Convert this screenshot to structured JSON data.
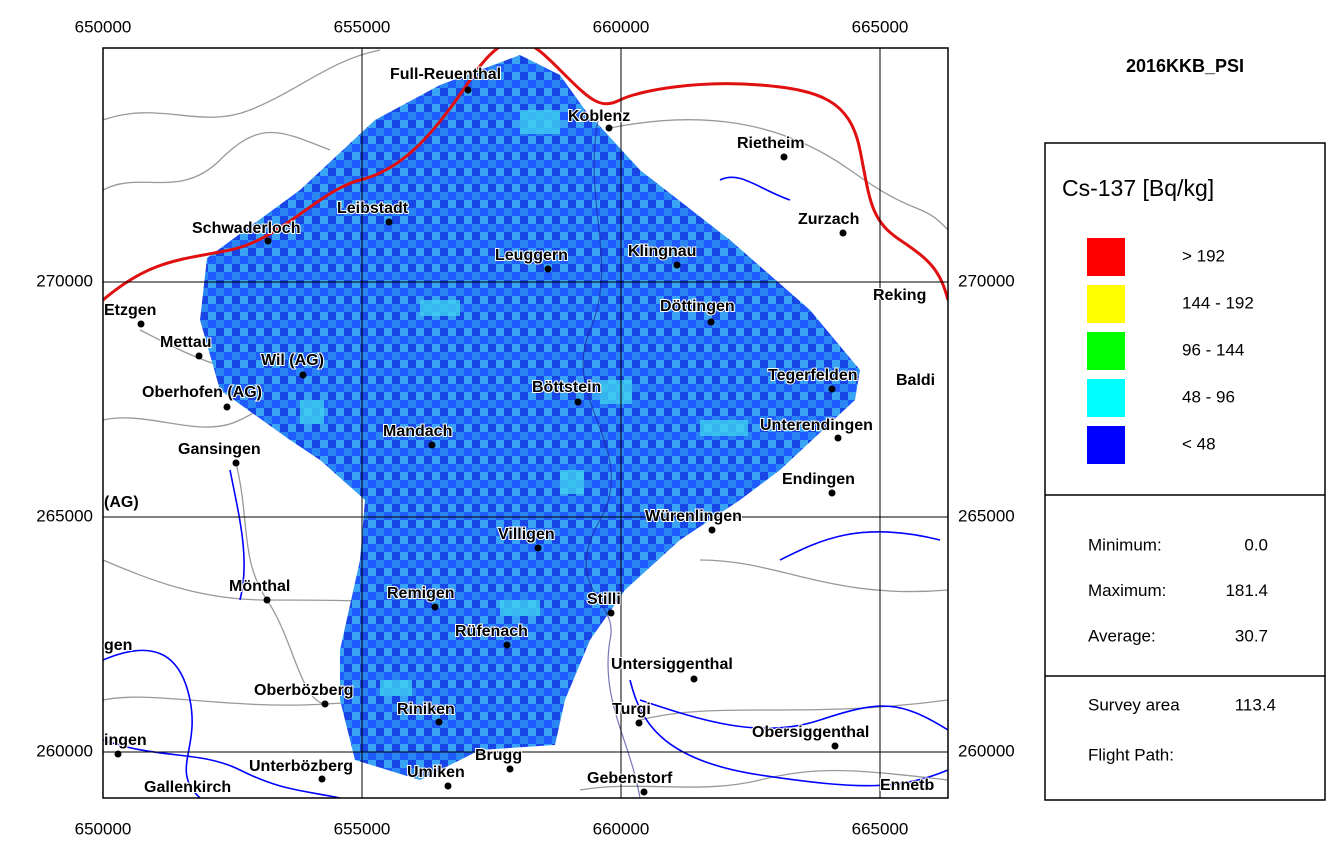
{
  "map": {
    "title": "2016KKB_PSI",
    "x_ticks": [
      650000,
      655000,
      660000,
      665000
    ],
    "y_ticks": [
      270000,
      265000,
      260000
    ],
    "places": [
      "Full-Reuenthal",
      "Koblenz",
      "Rietheim",
      "Zurzach",
      "Leibstadt",
      "Schwaderloch",
      "Leuggern",
      "Klingnau",
      "Reking",
      "Etzgen",
      "Döttingen",
      "Mettau",
      "Wil (AG)",
      "Oberhofen (AG)",
      "Böttstein",
      "Tegerfelden",
      "Baldi",
      "Unterendingen",
      "Mandach",
      "Gansingen",
      "Endingen",
      "(AG)",
      "Würenlingen",
      "Villigen",
      "Mönthal",
      "Remigen",
      "Stilli",
      "gen",
      "Rüfenach",
      "Untersiggenthal",
      "Oberbözberg",
      "Riniken",
      "Turgi",
      "Obersiggenthal",
      "ingen",
      "Brugg",
      "Unterbözberg",
      "Umiken",
      "Gebenstorf",
      "Gallenkirch",
      "Ennetb"
    ]
  },
  "legend": {
    "title": "Cs-137 [Bq/kg]",
    "classes": [
      {
        "label": "> 192",
        "color": "#ff0000"
      },
      {
        "label": "144 - 192",
        "color": "#ffff00"
      },
      {
        "label": "96 - 144",
        "color": "#00ff00"
      },
      {
        "label": "48 - 96",
        "color": "#00ffff"
      },
      {
        "label": "< 48",
        "color": "#0000ff"
      }
    ],
    "stats": [
      {
        "label": "Minimum:",
        "value": "0.0"
      },
      {
        "label": "Maximum:",
        "value": "181.4"
      },
      {
        "label": "Average:",
        "value": "30.7"
      }
    ],
    "survey_area": {
      "label": "Survey area",
      "value": "113.4"
    },
    "flight_path": "Flight Path:"
  }
}
